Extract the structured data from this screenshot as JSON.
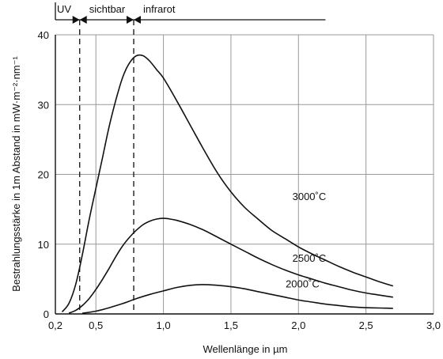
{
  "chart_data": {
    "type": "line",
    "title": "",
    "xlabel": "Wellenlänge in µm",
    "ylabel": "Bestrahlungsstärke in 1m Abstand in mW·m⁻²·nm⁻¹",
    "xlim": [
      0.2,
      3.0
    ],
    "ylim": [
      0,
      40
    ],
    "x_ticks": [
      0.2,
      0.5,
      1.0,
      1.5,
      2.0,
      2.5,
      3.0
    ],
    "x_tick_labels": [
      "0,2",
      "0,5",
      "1,0",
      "1,5",
      "2,0",
      "2,5",
      "3,0"
    ],
    "y_ticks": [
      0,
      10,
      20,
      30,
      40
    ],
    "y_tick_labels": [
      "0",
      "10",
      "20",
      "30",
      "40"
    ],
    "grid": true,
    "colors": {
      "axis": "#111111",
      "grid": "#9a9a9a",
      "series": "#111111"
    },
    "regions": [
      {
        "label": "UV",
        "from": 0.2,
        "to": 0.38
      },
      {
        "label": "sichtbar",
        "from": 0.38,
        "to": 0.78
      },
      {
        "label": "infrarot",
        "from": 0.78,
        "to": 2.2
      }
    ],
    "region_boundaries": [
      0.38,
      0.78
    ],
    "series": [
      {
        "name": "3000˚C",
        "x": [
          0.25,
          0.3,
          0.35,
          0.4,
          0.45,
          0.5,
          0.55,
          0.6,
          0.65,
          0.7,
          0.75,
          0.8,
          0.85,
          0.9,
          0.95,
          1.0,
          1.1,
          1.2,
          1.3,
          1.4,
          1.5,
          1.6,
          1.7,
          1.8,
          1.9,
          2.0,
          2.1,
          2.2,
          2.3,
          2.4,
          2.5,
          2.6,
          2.7
        ],
        "y": [
          0.3,
          1.5,
          4.2,
          8.5,
          13.5,
          18.0,
          22.5,
          27.0,
          30.8,
          34.0,
          36.0,
          37.0,
          37.0,
          36.2,
          35.0,
          33.8,
          30.5,
          27.0,
          23.5,
          20.2,
          17.5,
          15.3,
          13.6,
          12.0,
          10.8,
          9.6,
          8.6,
          7.7,
          6.8,
          6.0,
          5.3,
          4.6,
          4.0
        ],
        "label_at": {
          "x": 2.08,
          "y": 16.3
        }
      },
      {
        "name": "2500˚C",
        "x": [
          0.3,
          0.35,
          0.4,
          0.45,
          0.5,
          0.55,
          0.6,
          0.65,
          0.7,
          0.75,
          0.8,
          0.85,
          0.9,
          0.95,
          1.0,
          1.05,
          1.1,
          1.2,
          1.3,
          1.4,
          1.5,
          1.6,
          1.7,
          1.8,
          1.9,
          2.0,
          2.1,
          2.2,
          2.3,
          2.4,
          2.5,
          2.6,
          2.7
        ],
        "y": [
          0.1,
          0.5,
          1.2,
          2.2,
          3.5,
          5.0,
          6.6,
          8.3,
          9.8,
          11.0,
          12.0,
          12.8,
          13.3,
          13.6,
          13.7,
          13.6,
          13.4,
          12.8,
          12.0,
          11.0,
          10.0,
          9.0,
          8.0,
          7.1,
          6.3,
          5.6,
          5.0,
          4.4,
          3.9,
          3.4,
          3.0,
          2.7,
          2.4
        ],
        "label_at": {
          "x": 2.08,
          "y": 7.5
        }
      },
      {
        "name": "2000˚C",
        "x": [
          0.4,
          0.5,
          0.6,
          0.7,
          0.8,
          0.9,
          1.0,
          1.1,
          1.2,
          1.3,
          1.4,
          1.5,
          1.6,
          1.7,
          1.8,
          1.9,
          2.0,
          2.1,
          2.2,
          2.3,
          2.4,
          2.5,
          2.6,
          2.7
        ],
        "y": [
          0.1,
          0.4,
          0.9,
          1.5,
          2.2,
          2.8,
          3.3,
          3.8,
          4.1,
          4.2,
          4.1,
          3.9,
          3.6,
          3.2,
          2.8,
          2.4,
          2.0,
          1.7,
          1.4,
          1.2,
          1.0,
          0.9,
          0.85,
          0.8
        ],
        "label_at": {
          "x": 2.03,
          "y": 3.8
        }
      }
    ]
  }
}
